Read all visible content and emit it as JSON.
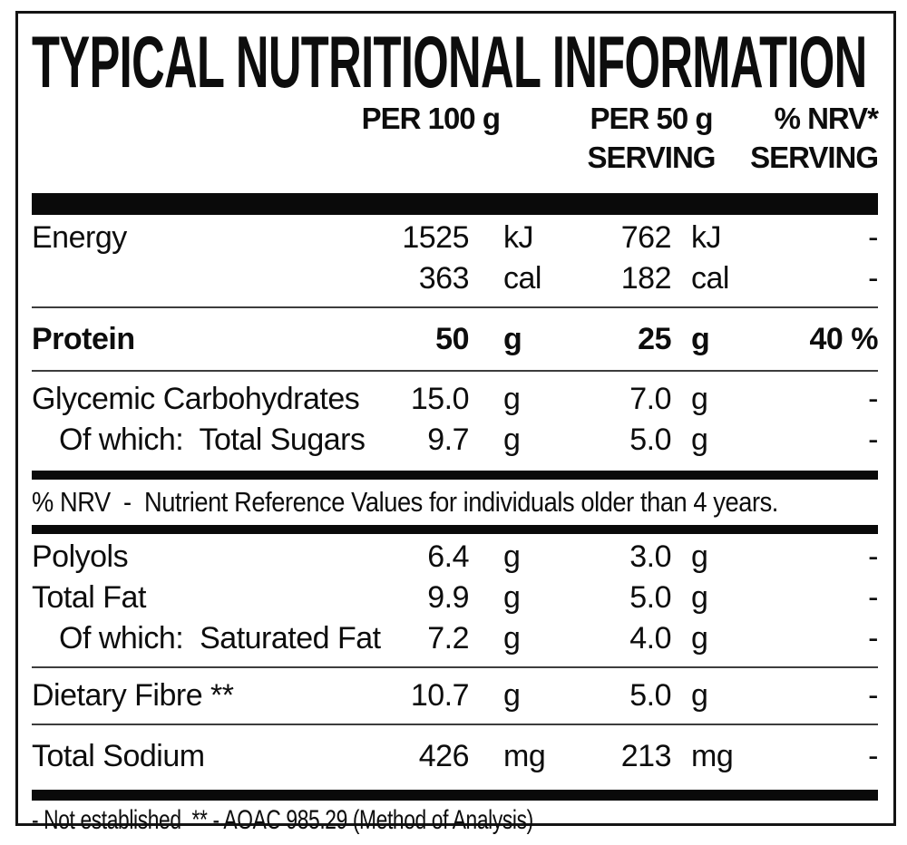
{
  "title": "TYPICAL NUTRITIONAL INFORMATION",
  "columns": {
    "per100": {
      "line1": "PER 100 g",
      "line2": ""
    },
    "per50": {
      "line1": "PER 50 g",
      "line2": "SERVING"
    },
    "nrv": {
      "line1": "% NRV*",
      "line2": "SERVING"
    }
  },
  "rows": [
    {
      "label": "Energy",
      "per100_value": "1525",
      "per100_unit": "kJ",
      "per50_value": "762",
      "per50_unit": "kJ",
      "nrv": "-"
    },
    {
      "label": "",
      "per100_value": "363",
      "per100_unit": "cal",
      "per50_value": "182",
      "per50_unit": "cal",
      "nrv": "-"
    },
    {
      "label": "Protein",
      "per100_value": "50",
      "per100_unit": "g",
      "per50_value": "25",
      "per50_unit": "g",
      "nrv": "40 %"
    },
    {
      "label": "Glycemic Carbohydrates",
      "per100_value": "15.0",
      "per100_unit": "g",
      "per50_value": "7.0",
      "per50_unit": "g",
      "nrv": "-"
    },
    {
      "label": "Of which:  Total Sugars",
      "per100_value": "9.7",
      "per100_unit": "g",
      "per50_value": "5.0",
      "per50_unit": "g",
      "nrv": "-"
    },
    {
      "label": "Polyols",
      "per100_value": "6.4",
      "per100_unit": "g",
      "per50_value": "3.0",
      "per50_unit": "g",
      "nrv": "-"
    },
    {
      "label": "Total Fat",
      "per100_value": "9.9",
      "per100_unit": "g",
      "per50_value": "5.0",
      "per50_unit": "g",
      "nrv": "-"
    },
    {
      "label": "Of which:  Saturated Fat",
      "per100_value": "7.2",
      "per100_unit": "g",
      "per50_value": "4.0",
      "per50_unit": "g",
      "nrv": "-"
    },
    {
      "label": "Dietary Fibre **",
      "per100_value": "10.7",
      "per100_unit": "g",
      "per50_value": "5.0",
      "per50_unit": "g",
      "nrv": "-"
    },
    {
      "label": "Total Sodium",
      "per100_value": "426",
      "per100_unit": "mg",
      "per50_value": "213",
      "per50_unit": "mg",
      "nrv": "-"
    }
  ],
  "nrv_note": "% NRV  -  Nutrient Reference Values for individuals older than 4 years.",
  "footnote": "- Not established  ** - AOAC 985.29 (Method of Analysis)",
  "colors": {
    "ink": "#0d0d0d",
    "background": "#ffffff",
    "band": "#0a0a0a",
    "thin_line": "#3d3d3d"
  }
}
